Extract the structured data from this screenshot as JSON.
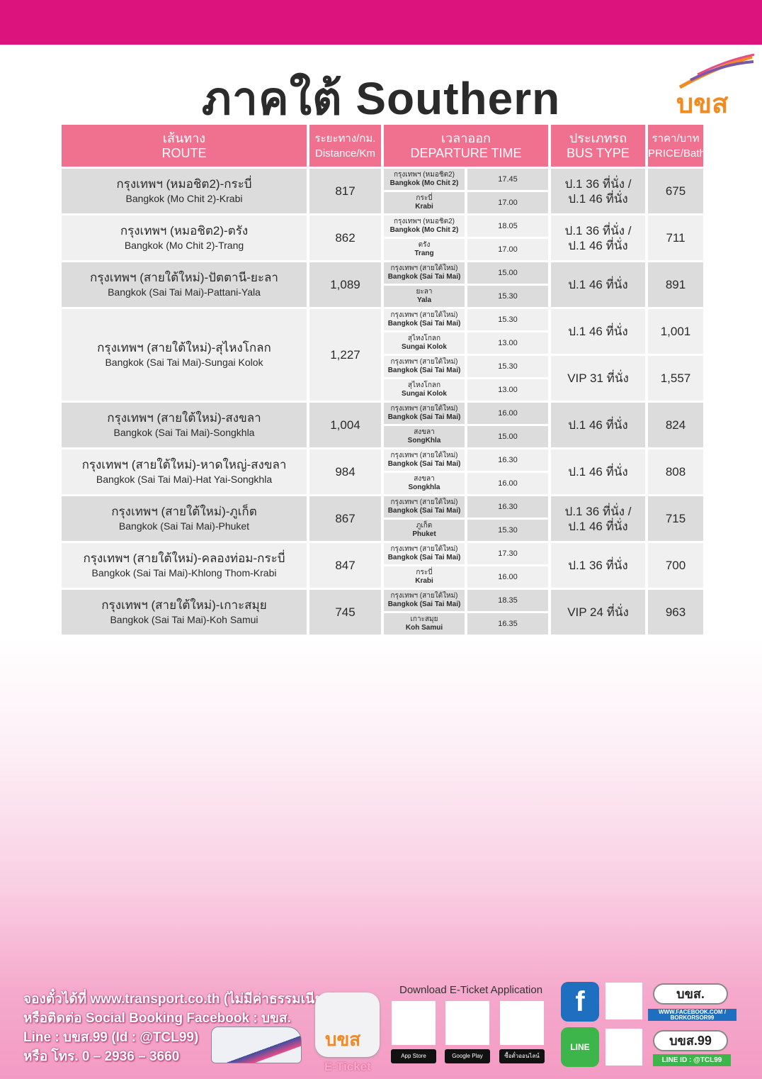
{
  "title": "ภาคใต้ Southern",
  "logo_text": "บขส",
  "header": {
    "route_th": "เส้นทาง",
    "route_en": "ROUTE",
    "distance_th": "ระยะทาง/กม.",
    "distance_en": "Distance/Km",
    "departure_th": "เวลาออก",
    "departure_en": "DEPARTURE TIME",
    "bustype_th": "ประเภทรถ",
    "bustype_en": "BUS TYPE",
    "price_th": "ราคา/บาท",
    "price_en": "PRICE/Bath"
  },
  "routes": [
    {
      "th": "กรุงเทพฯ (หมอชิต2)-กระบี่",
      "en": "Bangkok (Mo Chit 2)-Krabi",
      "distance": "817",
      "services": [
        {
          "departures": [
            {
              "th": "กรุงเทพฯ (หมอชิต2)",
              "en": "Bangkok (Mo Chit 2)",
              "time": "17.45"
            },
            {
              "th": "กระบี่",
              "en": "Krabi",
              "time": "17.00"
            }
          ],
          "bus_type": [
            "ป.1 36 ที่นั่ง /",
            "ป.1 46 ที่นั่ง"
          ],
          "price": "675"
        }
      ]
    },
    {
      "th": "กรุงเทพฯ (หมอชิต2)-ตรัง",
      "en": "Bangkok (Mo Chit 2)-Trang",
      "distance": "862",
      "services": [
        {
          "departures": [
            {
              "th": "กรุงเทพฯ (หมอชิต2)",
              "en": "Bangkok (Mo Chit 2)",
              "time": "18.05"
            },
            {
              "th": "ตรัง",
              "en": "Trang",
              "time": "17.00"
            }
          ],
          "bus_type": [
            "ป.1 36 ที่นั่ง /",
            "ป.1 46 ที่นั่ง"
          ],
          "price": "711"
        }
      ]
    },
    {
      "th": "กรุงเทพฯ (สายใต้ใหม่)-ปัตตานี-ยะลา",
      "en": "Bangkok (Sai Tai Mai)-Pattani-Yala",
      "distance": "1,089",
      "services": [
        {
          "departures": [
            {
              "th": "กรุงเทพฯ (สายใต้ใหม่)",
              "en": "Bangkok (Sai Tai Mai)",
              "time": "15.00"
            },
            {
              "th": "ยะลา",
              "en": "Yala",
              "time": "15.30"
            }
          ],
          "bus_type": [
            "ป.1 46 ที่นั่ง"
          ],
          "price": "891"
        }
      ]
    },
    {
      "th": "กรุงเทพฯ (สายใต้ใหม่)-สุไหงโกลก",
      "en": "Bangkok (Sai Tai Mai)-Sungai Kolok",
      "distance": "1,227",
      "services": [
        {
          "departures": [
            {
              "th": "กรุงเทพฯ (สายใต้ใหม่)",
              "en": "Bangkok (Sai Tai Mai)",
              "time": "15.30"
            },
            {
              "th": "สุไหงโกลก",
              "en": "Sungai Kolok",
              "time": "13.00"
            }
          ],
          "bus_type": [
            "ป.1 46 ที่นั่ง"
          ],
          "price": "1,001"
        },
        {
          "departures": [
            {
              "th": "กรุงเทพฯ (สายใต้ใหม่)",
              "en": "Bangkok (Sai Tai Mai)",
              "time": "15.30"
            },
            {
              "th": "สุไหงโกลก",
              "en": "Sungai Kolok",
              "time": "13.00"
            }
          ],
          "bus_type": [
            "VIP 31 ที่นั่ง"
          ],
          "price": "1,557"
        }
      ]
    },
    {
      "th": "กรุงเทพฯ (สายใต้ใหม่)-สงขลา",
      "en": "Bangkok (Sai Tai Mai)-Songkhla",
      "distance": "1,004",
      "services": [
        {
          "departures": [
            {
              "th": "กรุงเทพฯ (สายใต้ใหม่)",
              "en": "Bangkok (Sai Tai Mai)",
              "time": "16.00"
            },
            {
              "th": "สงขลา",
              "en": "SongKhla",
              "time": "15.00"
            }
          ],
          "bus_type": [
            "ป.1 46 ที่นั่ง"
          ],
          "price": "824"
        }
      ]
    },
    {
      "th": "กรุงเทพฯ (สายใต้ใหม่)-หาดใหญ่-สงขลา",
      "en": "Bangkok (Sai Tai Mai)-Hat Yai-Songkhla",
      "distance": "984",
      "services": [
        {
          "departures": [
            {
              "th": "กรุงเทพฯ (สายใต้ใหม่)",
              "en": "Bangkok (Sai Tai Mai)",
              "time": "16.30"
            },
            {
              "th": "สงขลา",
              "en": "Songkhla",
              "time": "16.00"
            }
          ],
          "bus_type": [
            "ป.1 46 ที่นั่ง"
          ],
          "price": "808"
        }
      ]
    },
    {
      "th": "กรุงเทพฯ (สายใต้ใหม่)-ภูเก็ต",
      "en": "Bangkok (Sai Tai Mai)-Phuket",
      "distance": "867",
      "services": [
        {
          "departures": [
            {
              "th": "กรุงเทพฯ (สายใต้ใหม่)",
              "en": "Bangkok (Sai Tai Mai)",
              "time": "16.30"
            },
            {
              "th": "ภูเก็ต",
              "en": "Phuket",
              "time": "15.30"
            }
          ],
          "bus_type": [
            "ป.1 36 ที่นั่ง /",
            "ป.1 46 ที่นั่ง"
          ],
          "price": "715"
        }
      ]
    },
    {
      "th": "กรุงเทพฯ (สายใต้ใหม่)-คลองท่อม-กระบี่",
      "en": "Bangkok (Sai Tai Mai)-Khlong Thom-Krabi",
      "distance": "847",
      "services": [
        {
          "departures": [
            {
              "th": "กรุงเทพฯ (สายใต้ใหม่)",
              "en": "Bangkok (Sai Tai Mai)",
              "time": "17.30"
            },
            {
              "th": "กระบี่",
              "en": "Krabi",
              "time": "16.00"
            }
          ],
          "bus_type": [
            "ป.1 36 ที่นั่ง"
          ],
          "price": "700"
        }
      ]
    },
    {
      "th": "กรุงเทพฯ (สายใต้ใหม่)-เกาะสมุย",
      "en": "Bangkok (Sai Tai Mai)-Koh Samui",
      "distance": "745",
      "services": [
        {
          "departures": [
            {
              "th": "กรุงเทพฯ (สายใต้ใหม่)",
              "en": "Bangkok (Sai Tai Mai)",
              "time": "18.35"
            },
            {
              "th": "เกาะสมุย",
              "en": "Koh Samui",
              "time": "16.35"
            }
          ],
          "bus_type": [
            "VIP 24 ที่นั่ง"
          ],
          "price": "963"
        }
      ]
    }
  ],
  "footer": {
    "lines": [
      "จองตั๋วได้ที่ www.transport.co.th (ไม่มีค่าธรรมเนียม)",
      "หรือติดต่อ Social Booking Facebook : บขส.",
      "Line : บขส.99 (Id : @TCL99)",
      "หรือ โทร. 0 – 2936 – 3660"
    ],
    "app_name": "บขส",
    "eticket": "E-Ticket",
    "download": "Download E-Ticket Application",
    "stores": [
      "App Store",
      "Google Play",
      "ซื้อตั๋วออนไลน์"
    ],
    "facebook_icon": "f",
    "line_icon": "LINE",
    "facebook_name": "บขส.",
    "facebook_url": "WWW.FACEBOOK.COM / BORKORSOR99",
    "line_name": "บขส.99",
    "line_id": "LINE ID : @TCL99",
    "colors": {
      "brand_pink": "#dc127d",
      "header_pink": "#f0708f",
      "facebook_blue": "#1f6fc0",
      "line_green": "#3db54a",
      "logo_orange": "#f18a21"
    }
  }
}
